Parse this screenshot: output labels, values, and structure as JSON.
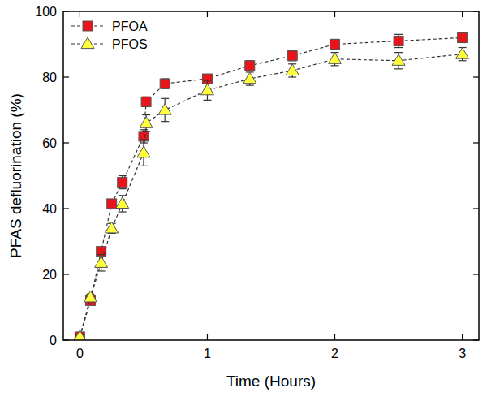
{
  "chart_data": {
    "type": "line",
    "x_label": "Time (Hours)",
    "y_label": "PFAS defluorination (%)",
    "x": [
      0,
      0.083,
      0.167,
      0.25,
      0.333,
      0.5,
      0.52,
      0.667,
      1,
      1.333,
      1.667,
      2,
      2.5,
      3
    ],
    "series": [
      {
        "name": "PFOA",
        "color": "#e8141c",
        "marker": "square",
        "line_style": "dashed",
        "values": [
          1,
          12,
          27,
          41.5,
          48,
          62,
          72.5,
          78,
          79.5,
          83.5,
          86.5,
          90,
          91,
          92
        ],
        "errors": [
          0.5,
          1,
          1,
          0.5,
          2,
          2,
          1.5,
          1.5,
          1,
          1.5,
          1.5,
          1.5,
          2,
          1.5
        ]
      },
      {
        "name": "PFOS",
        "color": "#ffff3c",
        "marker": "triangle",
        "line_style": "dashed",
        "values": [
          1,
          13,
          23.5,
          34,
          41.5,
          57,
          66,
          70,
          76,
          79.5,
          82,
          85.5,
          85,
          87
        ],
        "errors": [
          0.5,
          1,
          2.5,
          1.5,
          2.5,
          4,
          2.5,
          3.5,
          3,
          2,
          2,
          2,
          2.5,
          2
        ]
      }
    ],
    "xlim": [
      -0.13,
      3.13
    ],
    "ylim": [
      0,
      100
    ],
    "xticks": [
      0,
      1,
      2,
      3
    ],
    "yticks": [
      0,
      20,
      40,
      60,
      80,
      100
    ],
    "legend": "upper left",
    "grid": false
  }
}
